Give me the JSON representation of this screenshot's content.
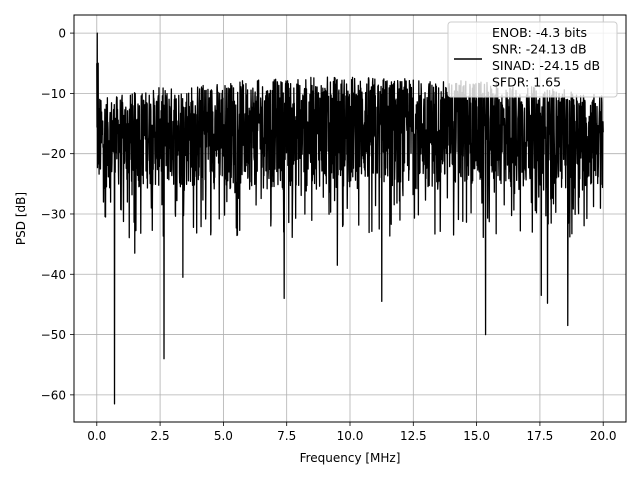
{
  "chart_data": {
    "type": "line",
    "title": "",
    "xlabel": "Frequency [MHz]",
    "ylabel": "PSD [dB]",
    "xlim": [
      -0.9,
      20.9
    ],
    "ylim": [
      -64.5,
      3.0
    ],
    "xticks": [
      0.0,
      2.5,
      5.0,
      7.5,
      10.0,
      12.5,
      15.0,
      17.5,
      20.0
    ],
    "xtick_labels": [
      "0.0",
      "2.5",
      "5.0",
      "7.5",
      "10.0",
      "12.5",
      "15.0",
      "17.5",
      "20.0"
    ],
    "yticks": [
      0,
      -10,
      -20,
      -30,
      -40,
      -50,
      -60
    ],
    "ytick_labels": [
      "0",
      "−10",
      "−20",
      "−30",
      "−40",
      "−50",
      "−60"
    ],
    "grid": true,
    "legend_position": "top-right",
    "series": [
      {
        "name": "ENOB: -4.3 bits\nSNR: -24.13 dB\nSINAD: -24.15 dB\nSFDR: 1.65",
        "legend_lines": [
          "ENOB: -4.3 bits",
          "SNR: -24.13 dB",
          "SINAD: -24.15 dB",
          "SFDR: 1.65"
        ],
        "color": "#000000",
        "x_range": [
          0.0,
          20.0
        ],
        "noise_band_db": [
          -26,
          -12
        ],
        "upper_envelope_db": [
          [
            0.0,
            -11
          ],
          [
            2.5,
            -9
          ],
          [
            5.0,
            -8
          ],
          [
            10.0,
            -7
          ],
          [
            15.0,
            -8
          ],
          [
            20.0,
            -10
          ]
        ],
        "peaks": [
          {
            "x": 0.02,
            "y": 0.0
          },
          {
            "x": 0.05,
            "y": -5
          },
          {
            "x": 0.12,
            "y": -11
          }
        ],
        "notable_dips": [
          {
            "x": 0.35,
            "y": -30.5
          },
          {
            "x": 0.7,
            "y": -61.5
          },
          {
            "x": 2.65,
            "y": -54.0
          },
          {
            "x": 3.4,
            "y": -40.5
          },
          {
            "x": 7.4,
            "y": -44.0
          },
          {
            "x": 11.25,
            "y": -44.5
          },
          {
            "x": 15.35,
            "y": -50.0
          },
          {
            "x": 17.55,
            "y": -43.5
          },
          {
            "x": 17.8,
            "y": -44.8
          },
          {
            "x": 18.6,
            "y": -48.5
          },
          {
            "x": 1.5,
            "y": -36.5
          },
          {
            "x": 9.5,
            "y": -38.5
          }
        ]
      }
    ]
  }
}
